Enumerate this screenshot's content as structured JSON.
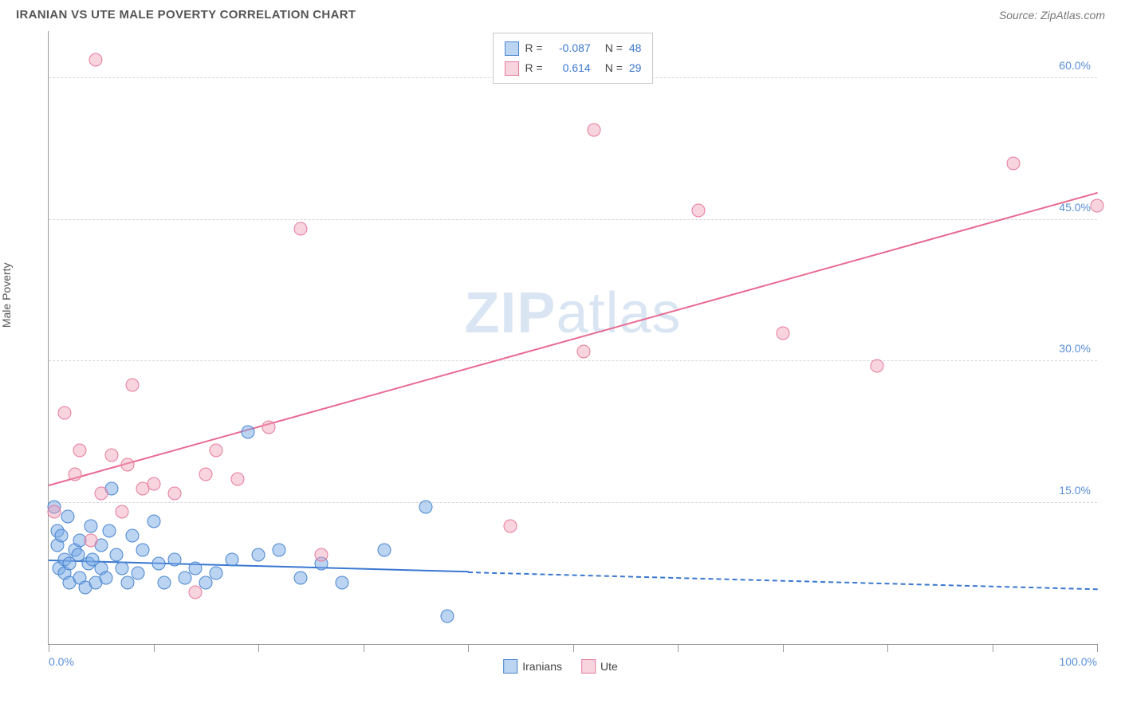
{
  "title": "IRANIAN VS UTE MALE POVERTY CORRELATION CHART",
  "source_label": "Source: ZipAtlas.com",
  "watermark": "ZIPatlas",
  "y_axis_label": "Male Poverty",
  "chart": {
    "type": "scatter",
    "xlim": [
      0,
      100
    ],
    "ylim": [
      0,
      65
    ],
    "x_ticks": [
      0,
      10,
      20,
      30,
      40,
      50,
      60,
      70,
      80,
      90,
      100
    ],
    "x_tick_labels": {
      "0": "0.0%",
      "100": "100.0%"
    },
    "y_ticks": [
      15,
      30,
      45,
      60
    ],
    "y_tick_labels": [
      "15.0%",
      "30.0%",
      "45.0%",
      "60.0%"
    ],
    "grid_color": "#d8d8d8",
    "axis_color": "#999999",
    "background_color": "#ffffff",
    "tick_label_color": "#5a8fd6",
    "tick_label_fontsize": 14,
    "series": [
      {
        "name": "Iranians",
        "marker_fill": "rgba(120,170,230,0.5)",
        "marker_stroke": "#4a85d0",
        "marker_size": 17,
        "R": "-0.087",
        "N": "48",
        "trend": {
          "x1": 0,
          "y1": 9.0,
          "x2": 100,
          "y2": 6.0,
          "solid_until_x": 40,
          "color": "#3a77d0",
          "width": 2
        },
        "points": [
          [
            0.5,
            14.5
          ],
          [
            0.8,
            12.0
          ],
          [
            0.8,
            10.5
          ],
          [
            1.0,
            8.0
          ],
          [
            1.2,
            11.5
          ],
          [
            1.5,
            9.0
          ],
          [
            1.5,
            7.5
          ],
          [
            1.8,
            13.5
          ],
          [
            2.0,
            8.5
          ],
          [
            2.0,
            6.5
          ],
          [
            2.5,
            10.0
          ],
          [
            2.8,
            9.5
          ],
          [
            3.0,
            11.0
          ],
          [
            3.0,
            7.0
          ],
          [
            3.5,
            6.0
          ],
          [
            3.8,
            8.5
          ],
          [
            4.0,
            12.5
          ],
          [
            4.2,
            9.0
          ],
          [
            4.5,
            6.5
          ],
          [
            5.0,
            8.0
          ],
          [
            5.0,
            10.5
          ],
          [
            5.5,
            7.0
          ],
          [
            5.8,
            12.0
          ],
          [
            6.0,
            16.5
          ],
          [
            6.5,
            9.5
          ],
          [
            7.0,
            8.0
          ],
          [
            7.5,
            6.5
          ],
          [
            8.0,
            11.5
          ],
          [
            8.5,
            7.5
          ],
          [
            9.0,
            10.0
          ],
          [
            10.0,
            13.0
          ],
          [
            10.5,
            8.5
          ],
          [
            11.0,
            6.5
          ],
          [
            12.0,
            9.0
          ],
          [
            13.0,
            7.0
          ],
          [
            14.0,
            8.0
          ],
          [
            15.0,
            6.5
          ],
          [
            16.0,
            7.5
          ],
          [
            17.5,
            9.0
          ],
          [
            19.0,
            22.5
          ],
          [
            20.0,
            9.5
          ],
          [
            22.0,
            10.0
          ],
          [
            24.0,
            7.0
          ],
          [
            26.0,
            8.5
          ],
          [
            28.0,
            6.5
          ],
          [
            32.0,
            10.0
          ],
          [
            36.0,
            14.5
          ],
          [
            38.0,
            3.0
          ]
        ]
      },
      {
        "name": "Ute",
        "marker_fill": "rgba(240,160,185,0.45)",
        "marker_stroke": "#e67a9c",
        "marker_size": 17,
        "R": "0.614",
        "N": "29",
        "trend": {
          "x1": 0,
          "y1": 17.0,
          "x2": 100,
          "y2": 48.0,
          "color": "#e86a91",
          "width": 2
        },
        "points": [
          [
            0.5,
            14.0
          ],
          [
            1.5,
            24.5
          ],
          [
            2.5,
            18.0
          ],
          [
            3.0,
            20.5
          ],
          [
            4.0,
            11.0
          ],
          [
            4.5,
            62.0
          ],
          [
            5.0,
            16.0
          ],
          [
            6.0,
            20.0
          ],
          [
            7.0,
            14.0
          ],
          [
            7.5,
            19.0
          ],
          [
            8.0,
            27.5
          ],
          [
            9.0,
            16.5
          ],
          [
            10.0,
            17.0
          ],
          [
            12.0,
            16.0
          ],
          [
            14.0,
            5.5
          ],
          [
            15.0,
            18.0
          ],
          [
            16.0,
            20.5
          ],
          [
            18.0,
            17.5
          ],
          [
            21.0,
            23.0
          ],
          [
            24.0,
            44.0
          ],
          [
            26.0,
            9.5
          ],
          [
            44.0,
            12.5
          ],
          [
            51.0,
            31.0
          ],
          [
            52.0,
            54.5
          ],
          [
            62.0,
            46.0
          ],
          [
            70.0,
            33.0
          ],
          [
            79.0,
            29.5
          ],
          [
            92.0,
            51.0
          ],
          [
            100.0,
            46.5
          ]
        ]
      }
    ]
  },
  "legend_top": {
    "rows": [
      {
        "swatch": "blue",
        "R_label": "R =",
        "R_val": "-0.087",
        "N_label": "N =",
        "N_val": "48"
      },
      {
        "swatch": "pink",
        "R_label": "R =",
        "R_val": "0.614",
        "N_label": "N =",
        "N_val": "29"
      }
    ]
  },
  "legend_bottom": {
    "items": [
      {
        "swatch": "blue",
        "label": "Iranians"
      },
      {
        "swatch": "pink",
        "label": "Ute"
      }
    ]
  }
}
